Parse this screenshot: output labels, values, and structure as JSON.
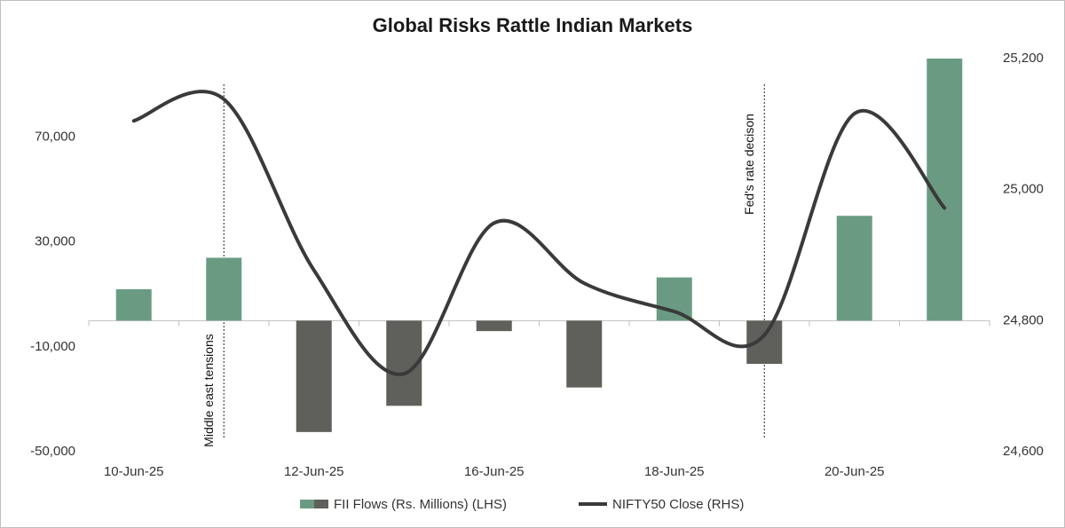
{
  "chart_data": {
    "type": "bar_line",
    "title": "Global Risks Rattle Indian Markets",
    "categories": [
      "10-Jun-25",
      null,
      "12-Jun-25",
      null,
      "16-Jun-25",
      null,
      "18-Jun-25",
      null,
      "20-Jun-25",
      null
    ],
    "series": [
      {
        "name": "FII Flows (Rs. Millions) (LHS)",
        "type": "bar",
        "color": "#6a9b82",
        "negative_color": "#5f605b",
        "axis": "y",
        "values": [
          12000,
          24000,
          -42500,
          -32500,
          -4000,
          -25500,
          16500,
          -16500,
          40000,
          100000
        ]
      },
      {
        "name": "NIFTY50 Close (RHS)",
        "type": "line",
        "color": "#3a3a3a",
        "axis": "y2",
        "values": [
          25105,
          25138,
          24877,
          24719,
          24949,
          24857,
          24814,
          24778,
          25116,
          24972
        ]
      }
    ],
    "ylim": [
      -50000,
      100000
    ],
    "yticks": [
      {
        "value": -50000,
        "label": "-50,000"
      },
      {
        "value": -10000,
        "label": "-10,000"
      },
      {
        "value": 30000,
        "label": "30,000"
      },
      {
        "value": 70000,
        "label": "70,000"
      }
    ],
    "y2lim": [
      24600,
      25200
    ],
    "y2ticks": [
      {
        "value": 24600,
        "label": "24,600"
      },
      {
        "value": 24800,
        "label": "24,800"
      },
      {
        "value": 25000,
        "label": "25,000"
      },
      {
        "value": 25200,
        "label": "25,200"
      }
    ],
    "annotations": [
      "Middle east tensions",
      "Fed's rate decison"
    ],
    "grid": false
  }
}
